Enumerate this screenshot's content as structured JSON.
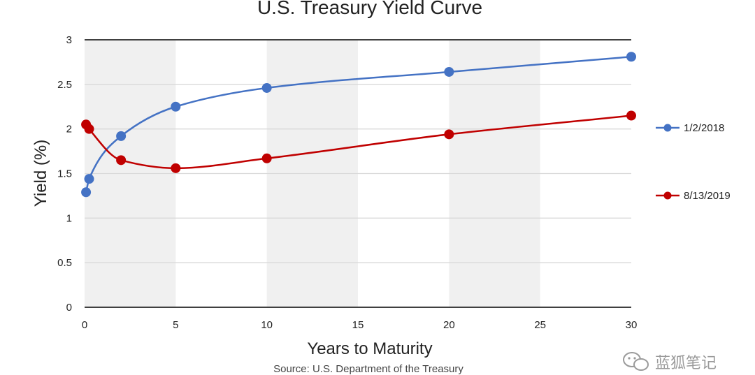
{
  "chart_data": {
    "type": "line",
    "title": "U.S. Treasury Yield Curve",
    "xlabel": "Years to Maturity",
    "ylabel": "Yield (%)",
    "source": "Source: U.S. Department of the Treasury",
    "xlim": [
      0,
      30
    ],
    "ylim": [
      0,
      3
    ],
    "xticks": [
      0,
      5,
      10,
      15,
      20,
      25,
      30
    ],
    "yticks": [
      0,
      0.5,
      1,
      1.5,
      2,
      2.5,
      3
    ],
    "shaded_bands": [
      [
        0,
        5
      ],
      [
        10,
        15
      ],
      [
        20,
        25
      ]
    ],
    "legend_position": "right",
    "series": [
      {
        "name": "1/2/2018",
        "color": "#4472C4",
        "x": [
          0.08,
          0.25,
          2,
          5,
          10,
          20,
          30
        ],
        "y": [
          1.29,
          1.44,
          1.92,
          2.25,
          2.46,
          2.64,
          2.81
        ]
      },
      {
        "name": "8/13/2019",
        "color": "#C00000",
        "x": [
          0.08,
          0.25,
          2,
          5,
          10,
          20,
          30
        ],
        "y": [
          2.05,
          2.0,
          1.65,
          1.56,
          1.67,
          1.94,
          2.15
        ]
      }
    ]
  },
  "watermark": {
    "text": "蓝狐笔记",
    "icon": "wechat-icon"
  }
}
